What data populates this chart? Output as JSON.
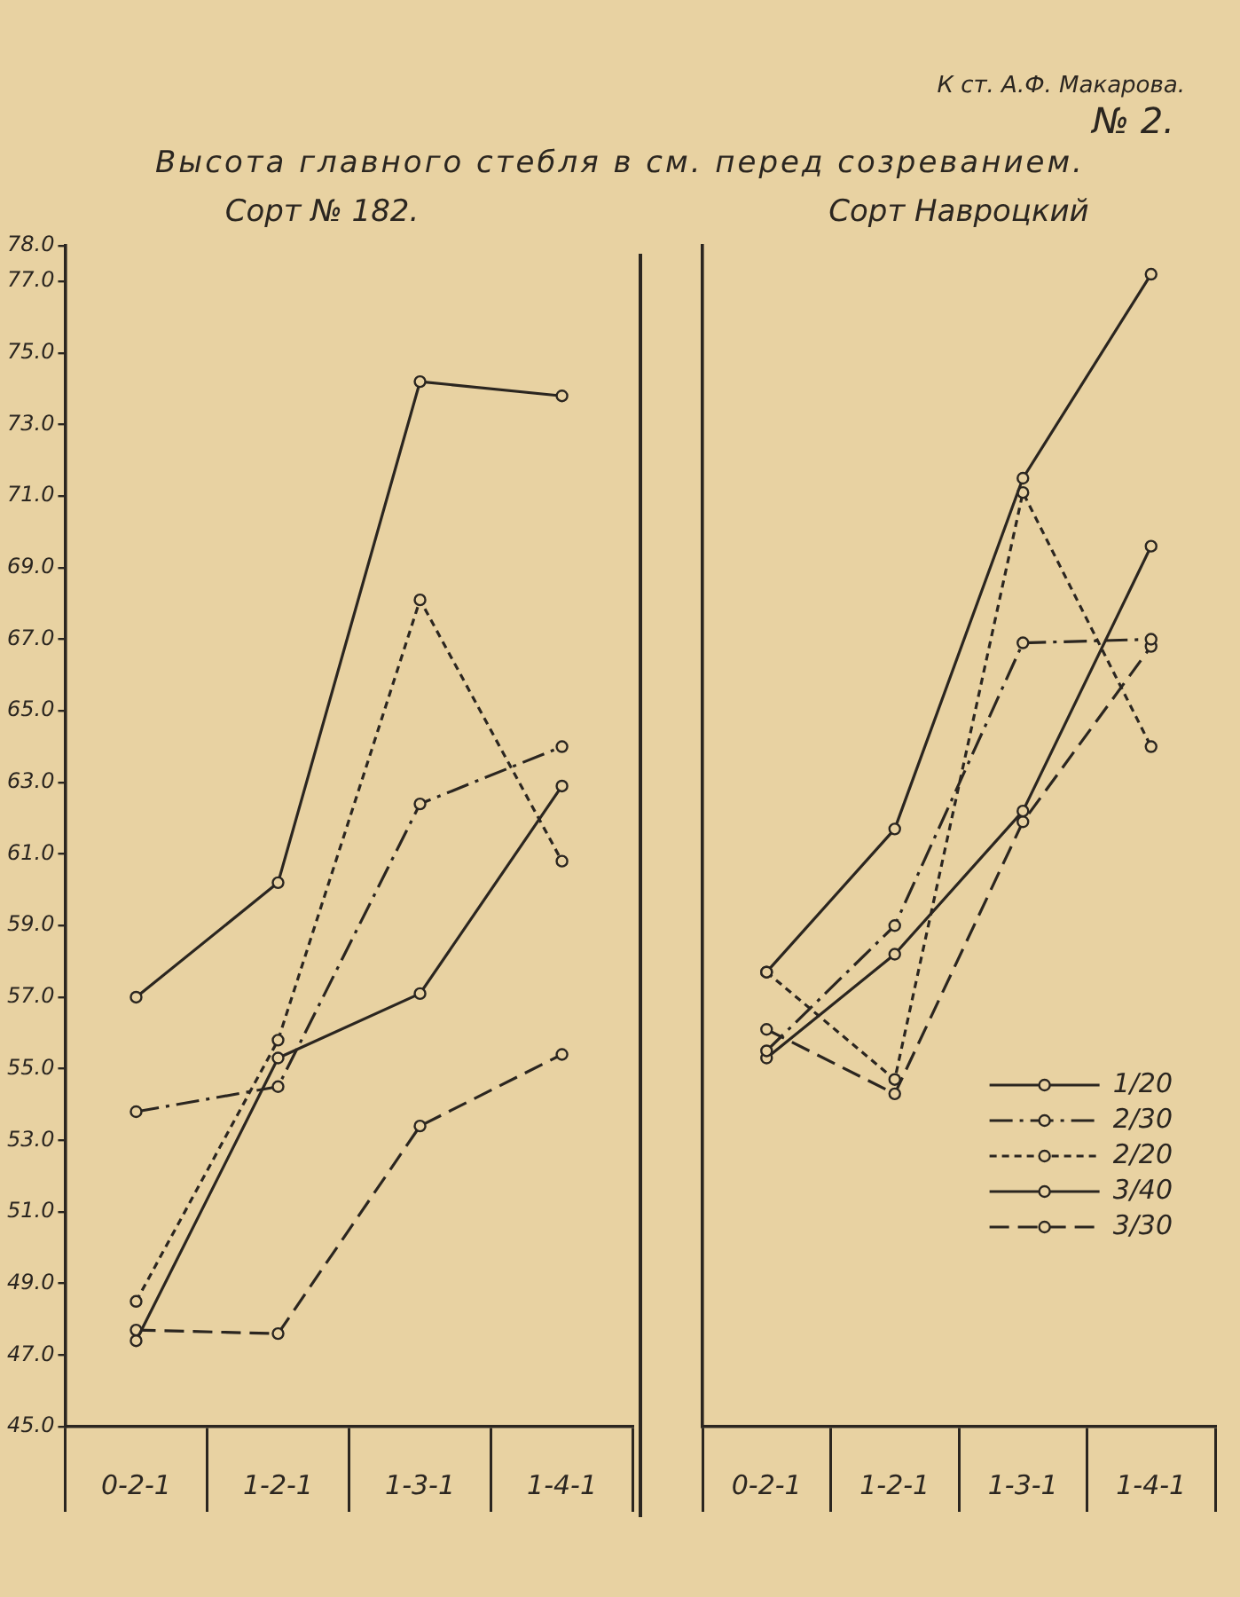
{
  "chart_data": [
    {
      "type": "line",
      "title": "Высота главного стебля в см. перед созреванием.",
      "subtitle": "Сорт № 182.",
      "annotations": [
        "К ст. А.Ф. Макарова.",
        "№ 2."
      ],
      "categories": [
        "0-2-1",
        "1-2-1",
        "1-3-1",
        "1-4-1"
      ],
      "series": [
        {
          "color": "#2b2620",
          "line_style": "solid",
          "values": [
            57.0,
            60.2,
            74.2,
            73.8
          ]
        },
        {
          "color": "#2b2620",
          "line_style": "dashdot",
          "values": [
            53.8,
            54.5,
            62.4,
            64.0
          ]
        },
        {
          "color": "#2b2620",
          "line_style": "dotted",
          "values": [
            48.5,
            55.8,
            68.1,
            60.8
          ]
        },
        {
          "color": "#2b2620",
          "line_style": "solid",
          "values": [
            47.4,
            55.3,
            57.1,
            62.9
          ]
        },
        {
          "color": "#2b2620",
          "line_style": "dashed",
          "values": [
            47.7,
            47.6,
            53.4,
            55.4
          ]
        }
      ],
      "ylim": [
        45,
        78
      ],
      "yticks": [
        {
          "value": 45,
          "label": "45.0"
        },
        {
          "value": 47,
          "label": "47.0"
        },
        {
          "value": 49,
          "label": "49.0"
        },
        {
          "value": 51,
          "label": "51.0"
        },
        {
          "value": 53,
          "label": "53.0"
        },
        {
          "value": 55,
          "label": "55.0"
        },
        {
          "value": 57,
          "label": "57.0"
        },
        {
          "value": 59,
          "label": "59.0"
        },
        {
          "value": 61,
          "label": "61.0"
        },
        {
          "value": 63,
          "label": "63.0"
        },
        {
          "value": 65,
          "label": "65.0"
        },
        {
          "value": 67,
          "label": "67.0"
        },
        {
          "value": 69,
          "label": "69.0"
        },
        {
          "value": 71,
          "label": "71.0"
        },
        {
          "value": 73,
          "label": "73.0"
        },
        {
          "value": 75,
          "label": "75.0"
        },
        {
          "value": 77,
          "label": "77.0"
        },
        {
          "value": 78,
          "label": "78.0"
        }
      ],
      "marker": "circle"
    },
    {
      "type": "line",
      "subtitle": "Сорт Навроцкий",
      "categories": [
        "0-2-1",
        "1-2-1",
        "1-3-1",
        "1-4-1"
      ],
      "series": [
        {
          "name": "1/20",
          "color": "#2b2620",
          "line_style": "solid",
          "values": [
            57.7,
            61.7,
            71.5,
            77.2
          ]
        },
        {
          "name": "2/30",
          "color": "#2b2620",
          "line_style": "dashdot",
          "values": [
            55.5,
            59.0,
            66.9,
            67.0
          ]
        },
        {
          "name": "2/20",
          "color": "#2b2620",
          "line_style": "dotted",
          "values": [
            57.7,
            54.7,
            71.1,
            64.0
          ]
        },
        {
          "name": "3/40",
          "color": "#2b2620",
          "line_style": "solid",
          "values": [
            55.3,
            58.2,
            62.2,
            69.6
          ]
        },
        {
          "name": "3/30",
          "color": "#2b2620",
          "line_style": "dashed",
          "values": [
            56.1,
            54.3,
            61.9,
            66.8
          ]
        }
      ],
      "ylim": [
        45,
        78
      ],
      "tick_labels": "x",
      "marker": "circle",
      "legend": "bottom right"
    }
  ]
}
